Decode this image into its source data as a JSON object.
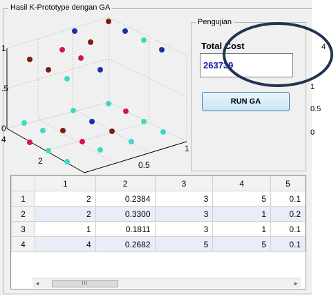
{
  "window": {
    "group_title": "Hasil K-Prototype dengan GA"
  },
  "plot": {
    "z_ticks": [
      "1",
      ".5",
      "0"
    ],
    "y_ticks": [
      "4",
      "2"
    ],
    "x_ticks": [
      "0.5",
      "1"
    ],
    "colors": {
      "navy": "#1c2fb0",
      "teal": "#3fd9c1",
      "crimson": "#d0184a",
      "brown": "#7a1f10"
    }
  },
  "pengujian": {
    "title": "Pengujian",
    "total_cost_label": "Total Cost",
    "total_cost_value": "263739",
    "run_button": "RUN GA"
  },
  "table": {
    "columns": [
      "1",
      "2",
      "3",
      "4",
      "5"
    ],
    "rows": [
      {
        "label": "1",
        "cells": [
          "2",
          "0.2384",
          "3",
          "5",
          "0.1"
        ]
      },
      {
        "label": "2",
        "cells": [
          "2",
          "0.3300",
          "3",
          "1",
          "0.2"
        ]
      },
      {
        "label": "3",
        "cells": [
          "1",
          "0.1811",
          "3",
          "1",
          "0.1"
        ]
      },
      {
        "label": "4",
        "cells": [
          "4",
          "0.2682",
          "5",
          "5",
          "0.1"
        ]
      }
    ]
  },
  "scrollbar": {
    "thumb_label": "III",
    "left_arrow": "◂",
    "right_arrow": "▸"
  },
  "right_edge_ticks": [
    "4",
    "1",
    "0.5",
    "0"
  ]
}
